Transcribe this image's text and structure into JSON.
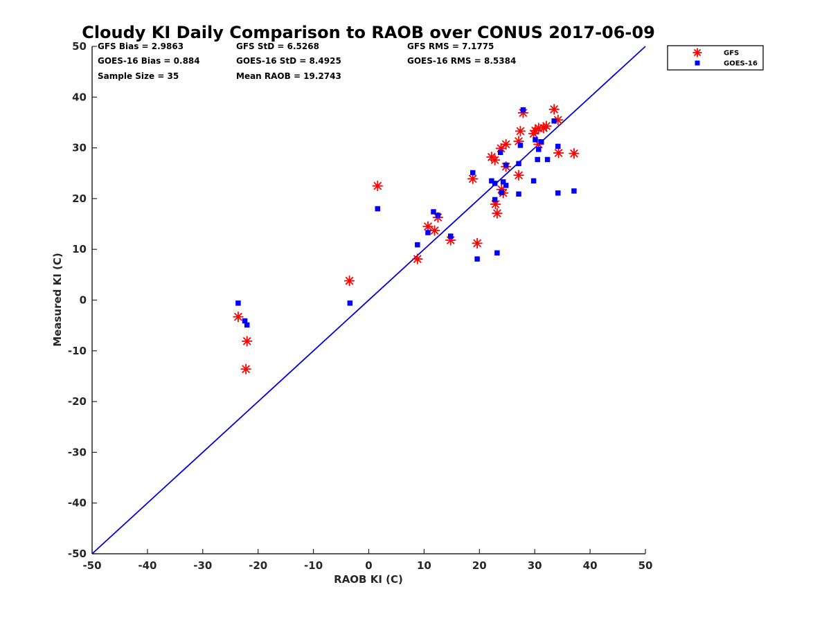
{
  "chart_data": {
    "type": "scatter",
    "title": "Cloudy KI Daily Comparison to RAOB over CONUS 2017-06-09",
    "xlabel": "RAOB KI (C)",
    "ylabel": "Measured KI (C)",
    "xlim": [
      -50,
      50
    ],
    "ylim": [
      -50,
      50
    ],
    "xticks": [
      -50,
      -40,
      -30,
      -20,
      -10,
      0,
      10,
      20,
      30,
      40,
      50
    ],
    "yticks": [
      -50,
      -40,
      -30,
      -20,
      -10,
      0,
      10,
      20,
      30,
      40,
      50
    ],
    "grid": false,
    "legend_position": "top-right-outside",
    "reference_line": {
      "from": [
        -50,
        -50
      ],
      "to": [
        50,
        50
      ],
      "color": "#0000dd"
    },
    "stats": [
      {
        "text": "GFS Bias = 2.9863",
        "row": 0,
        "col": 0
      },
      {
        "text": "GFS StD = 6.5268",
        "row": 0,
        "col": 1
      },
      {
        "text": "GFS RMS = 7.1775",
        "row": 0,
        "col": 2
      },
      {
        "text": "GOES-16 Bias = 0.884",
        "row": 1,
        "col": 0
      },
      {
        "text": "GOES-16 StD = 8.4925",
        "row": 1,
        "col": 1
      },
      {
        "text": "GOES-16 RMS = 8.5384",
        "row": 1,
        "col": 2
      },
      {
        "text": "Sample Size = 35",
        "row": 2,
        "col": 0
      },
      {
        "text": "Mean RAOB = 19.2743",
        "row": 2,
        "col": 1
      }
    ],
    "series": [
      {
        "name": "GFS",
        "marker": "asterisk",
        "color": "#ff0000",
        "points": [
          [
            -23.6,
            -3.3
          ],
          [
            -22.0,
            -8.1
          ],
          [
            -22.2,
            -13.6
          ],
          [
            -3.5,
            3.8
          ],
          [
            1.6,
            22.5
          ],
          [
            8.8,
            8.1
          ],
          [
            10.7,
            14.5
          ],
          [
            11.9,
            13.7
          ],
          [
            12.5,
            16.3
          ],
          [
            14.8,
            11.8
          ],
          [
            18.8,
            23.9
          ],
          [
            19.6,
            11.2
          ],
          [
            22.2,
            28.2
          ],
          [
            22.8,
            27.6
          ],
          [
            22.9,
            18.9
          ],
          [
            23.2,
            17.1
          ],
          [
            23.9,
            29.9
          ],
          [
            24.0,
            21.8
          ],
          [
            24.3,
            21.1
          ],
          [
            24.8,
            30.7
          ],
          [
            24.8,
            26.3
          ],
          [
            27.1,
            24.6
          ],
          [
            27.1,
            31.3
          ],
          [
            27.4,
            33.3
          ],
          [
            27.9,
            36.9
          ],
          [
            29.8,
            32.8
          ],
          [
            30.1,
            33.4
          ],
          [
            30.7,
            33.9
          ],
          [
            30.7,
            30.7
          ],
          [
            31.6,
            33.9
          ],
          [
            32.1,
            34.3
          ],
          [
            33.5,
            37.6
          ],
          [
            34.2,
            35.5
          ],
          [
            34.3,
            29.0
          ],
          [
            37.1,
            28.9
          ]
        ]
      },
      {
        "name": "GOES-16",
        "marker": "square",
        "color": "#0000ff",
        "points": [
          [
            -23.6,
            -0.6
          ],
          [
            -22.4,
            -4.1
          ],
          [
            -22.0,
            -4.9
          ],
          [
            -3.4,
            -0.6
          ],
          [
            1.6,
            18.0
          ],
          [
            8.8,
            10.9
          ],
          [
            10.7,
            13.3
          ],
          [
            11.7,
            17.4
          ],
          [
            12.5,
            16.7
          ],
          [
            14.8,
            12.6
          ],
          [
            18.8,
            25.1
          ],
          [
            19.6,
            8.1
          ],
          [
            22.2,
            23.5
          ],
          [
            22.8,
            23.0
          ],
          [
            22.8,
            19.8
          ],
          [
            23.2,
            9.3
          ],
          [
            23.8,
            29.1
          ],
          [
            24.0,
            21.2
          ],
          [
            24.3,
            23.3
          ],
          [
            24.8,
            26.6
          ],
          [
            24.8,
            22.6
          ],
          [
            27.1,
            20.9
          ],
          [
            27.1,
            26.9
          ],
          [
            27.4,
            30.5
          ],
          [
            27.9,
            37.5
          ],
          [
            29.8,
            23.5
          ],
          [
            30.1,
            31.6
          ],
          [
            30.5,
            27.7
          ],
          [
            30.7,
            29.7
          ],
          [
            31.2,
            31.2
          ],
          [
            32.3,
            27.7
          ],
          [
            33.5,
            35.3
          ],
          [
            34.2,
            30.3
          ],
          [
            34.2,
            21.1
          ],
          [
            37.1,
            21.5
          ]
        ]
      }
    ]
  }
}
